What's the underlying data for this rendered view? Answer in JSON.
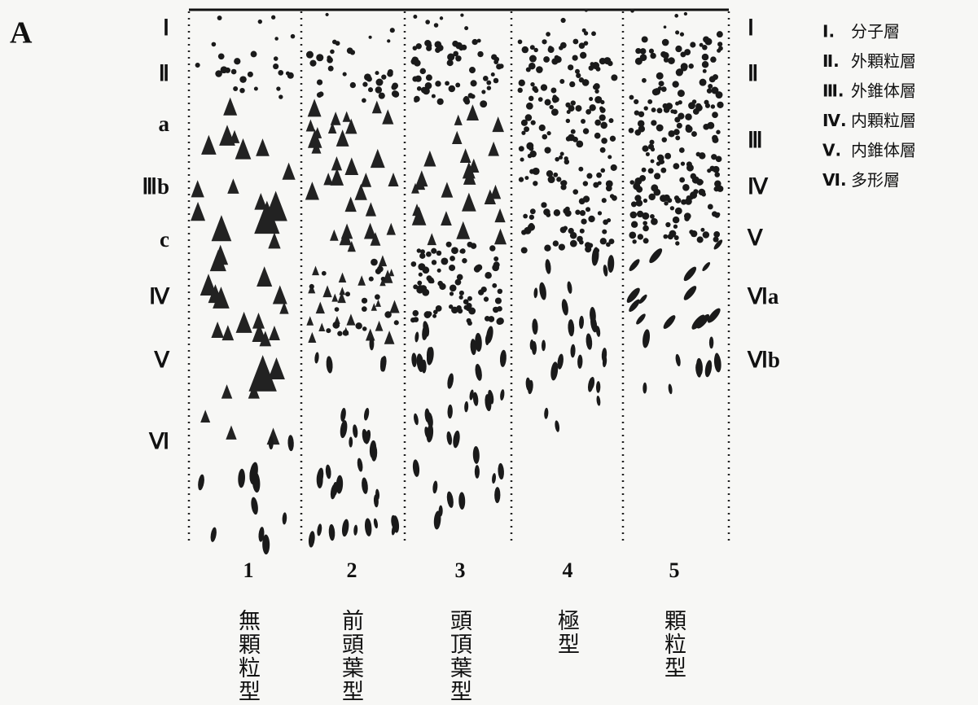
{
  "figure_label": "A",
  "left_layer_labels": [
    "Ⅰ",
    "Ⅱ",
    "a",
    "Ⅲb",
    "c",
    "Ⅳ",
    "Ⅴ",
    "Ⅵ"
  ],
  "right_layer_labels": [
    "Ⅰ",
    "Ⅱ",
    "Ⅲ",
    "Ⅳ",
    "Ⅴ",
    "Ⅵa",
    "Ⅵb"
  ],
  "legend": [
    {
      "numeral": "Ⅰ.",
      "name": "分子層"
    },
    {
      "numeral": "Ⅱ.",
      "name": "外顆粒層"
    },
    {
      "numeral": "Ⅲ.",
      "name": "外錐体層"
    },
    {
      "numeral": "Ⅳ.",
      "name": "内顆粒層"
    },
    {
      "numeral": "Ⅴ.",
      "name": "内錐体層"
    },
    {
      "numeral": "Ⅵ.",
      "name": "多形層"
    }
  ],
  "columns": [
    {
      "number": "1",
      "name": "無顆粒型"
    },
    {
      "number": "2",
      "name": "前頭葉型"
    },
    {
      "number": "3",
      "name": "頭頂葉型"
    },
    {
      "number": "4",
      "name": "極型"
    },
    {
      "number": "5",
      "name": "顆粒型"
    }
  ]
}
